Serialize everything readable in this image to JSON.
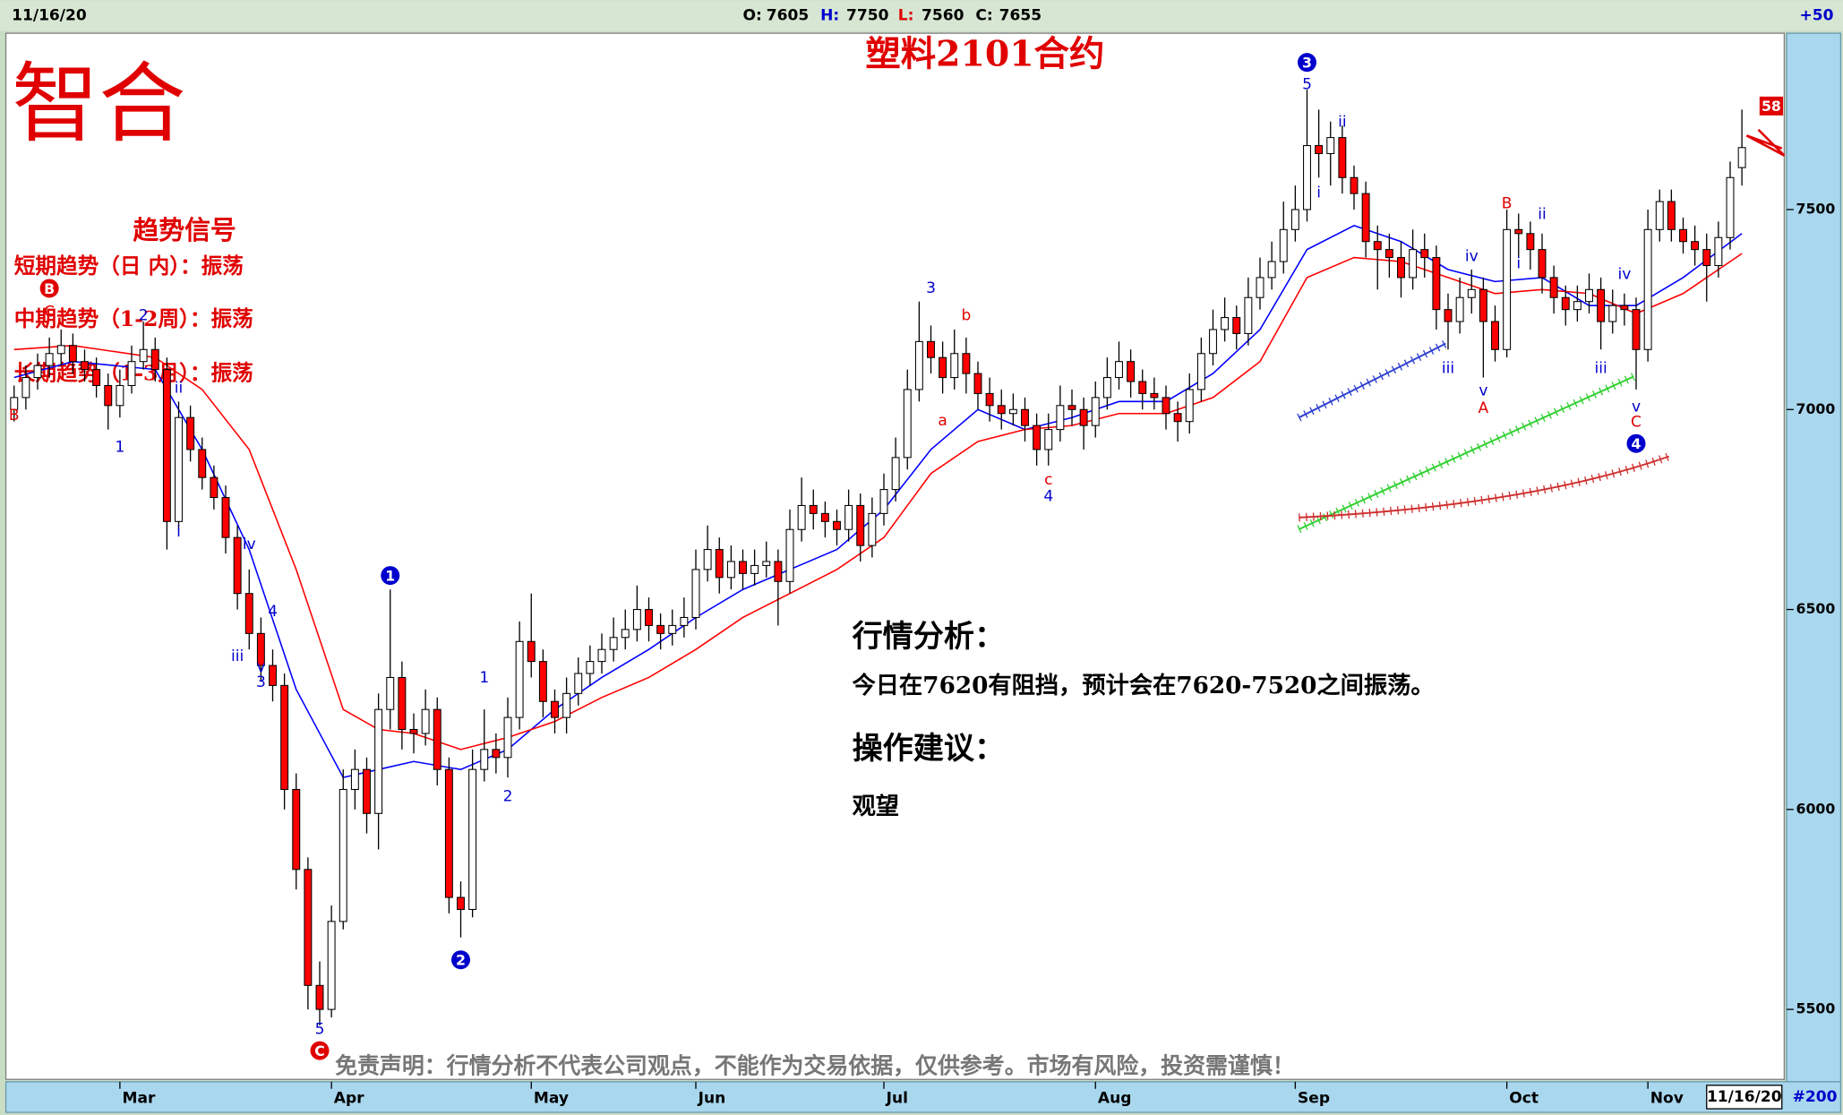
{
  "header": {
    "date": "11/16/20",
    "open": {
      "label": "O:",
      "value": 7605
    },
    "high": {
      "label": "H:",
      "value": 7750
    },
    "low": {
      "label": "L:",
      "value": 7560
    },
    "close": {
      "label": "C:",
      "value": 7655
    },
    "change": "+50"
  },
  "logo": "智合",
  "trend_panel": {
    "title": "趋势信号",
    "rows": [
      "短期趋势（日 内）：振荡",
      "中期趋势（1-2周）：振荡",
      "长期趋势（1-3月）：振荡"
    ]
  },
  "analysis": {
    "heading": "行情分析：",
    "text": "今日在7620有阻挡，预计会在7620-7520之间振荡。",
    "advice_heading": "操作建议：",
    "advice": "观望"
  },
  "disclaimer": "免责声明：行情分析不代表公司观点，不能作为交易依据，仅供参考。市场有风险，投资需谨慎！",
  "footer": {
    "status_date": "11/16/20",
    "bar_count": "#200"
  },
  "chart_data": {
    "type": "candlestick",
    "title": "塑料2101合约",
    "ylim": [
      5325,
      7935
    ],
    "yticks": [
      5500,
      6000,
      6500,
      7000,
      7500
    ],
    "up_color": "#ffffff",
    "down_color": "#ff0000",
    "outline_color": "#000000",
    "xlabels": [
      {
        "label": "Mar",
        "index": 9
      },
      {
        "label": "Apr",
        "index": 27
      },
      {
        "label": "May",
        "index": 44
      },
      {
        "label": "Jun",
        "index": 58
      },
      {
        "label": "Jul",
        "index": 74
      },
      {
        "label": "Aug",
        "index": 92
      },
      {
        "label": "Sep",
        "index": 109
      },
      {
        "label": "Oct",
        "index": 127
      },
      {
        "label": "Nov",
        "index": 139
      }
    ],
    "candles": [
      [
        7000,
        7060,
        6970,
        7030
      ],
      [
        7030,
        7110,
        7000,
        7080
      ],
      [
        7080,
        7140,
        7050,
        7110
      ],
      [
        7110,
        7180,
        7080,
        7140
      ],
      [
        7140,
        7200,
        7110,
        7160
      ],
      [
        7160,
        7190,
        7090,
        7120
      ],
      [
        7120,
        7150,
        7070,
        7100
      ],
      [
        7100,
        7130,
        7030,
        7060
      ],
      [
        7060,
        7090,
        6950,
        7010
      ],
      [
        7010,
        7100,
        6980,
        7060
      ],
      [
        7060,
        7160,
        7040,
        7120
      ],
      [
        7120,
        7220,
        7100,
        7150
      ],
      [
        7150,
        7180,
        7070,
        7100
      ],
      [
        7100,
        7130,
        6650,
        6720
      ],
      [
        6720,
        7020,
        6700,
        6980
      ],
      [
        6980,
        7010,
        6870,
        6900
      ],
      [
        6900,
        6930,
        6800,
        6830
      ],
      [
        6830,
        6860,
        6750,
        6780
      ],
      [
        6780,
        6810,
        6640,
        6680
      ],
      [
        6680,
        6710,
        6500,
        6540
      ],
      [
        6540,
        6600,
        6400,
        6440
      ],
      [
        6440,
        6480,
        6320,
        6360
      ],
      [
        6360,
        6400,
        6270,
        6310
      ],
      [
        6310,
        6340,
        6000,
        6050
      ],
      [
        6050,
        6090,
        5800,
        5850
      ],
      [
        5850,
        5880,
        5500,
        5560
      ],
      [
        5560,
        5620,
        5460,
        5500
      ],
      [
        5500,
        5760,
        5480,
        5720
      ],
      [
        5720,
        6100,
        5700,
        6050
      ],
      [
        6050,
        6150,
        6000,
        6100
      ],
      [
        6100,
        6130,
        5940,
        5990
      ],
      [
        5990,
        6290,
        5900,
        6250
      ],
      [
        6250,
        6550,
        6200,
        6330
      ],
      [
        6330,
        6370,
        6150,
        6200
      ],
      [
        6200,
        6240,
        6140,
        6190
      ],
      [
        6190,
        6300,
        6160,
        6250
      ],
      [
        6250,
        6280,
        6060,
        6100
      ],
      [
        6100,
        6130,
        5740,
        5780
      ],
      [
        5780,
        5820,
        5680,
        5750
      ],
      [
        5750,
        6150,
        5730,
        6100
      ],
      [
        6100,
        6250,
        6070,
        6150
      ],
      [
        6150,
        6190,
        6090,
        6130
      ],
      [
        6130,
        6280,
        6080,
        6230
      ],
      [
        6230,
        6470,
        6200,
        6420
      ],
      [
        6420,
        6540,
        6330,
        6370
      ],
      [
        6370,
        6400,
        6230,
        6270
      ],
      [
        6270,
        6300,
        6190,
        6230
      ],
      [
        6230,
        6330,
        6190,
        6290
      ],
      [
        6290,
        6380,
        6260,
        6340
      ],
      [
        6340,
        6410,
        6310,
        6370
      ],
      [
        6370,
        6440,
        6340,
        6400
      ],
      [
        6400,
        6480,
        6370,
        6430
      ],
      [
        6430,
        6500,
        6400,
        6450
      ],
      [
        6450,
        6560,
        6420,
        6500
      ],
      [
        6500,
        6530,
        6420,
        6460
      ],
      [
        6460,
        6490,
        6400,
        6440
      ],
      [
        6440,
        6500,
        6410,
        6460
      ],
      [
        6460,
        6530,
        6430,
        6480
      ],
      [
        6480,
        6650,
        6450,
        6600
      ],
      [
        6600,
        6710,
        6570,
        6650
      ],
      [
        6650,
        6680,
        6540,
        6580
      ],
      [
        6580,
        6660,
        6550,
        6620
      ],
      [
        6620,
        6650,
        6550,
        6590
      ],
      [
        6590,
        6650,
        6560,
        6610
      ],
      [
        6610,
        6670,
        6580,
        6620
      ],
      [
        6620,
        6650,
        6460,
        6570
      ],
      [
        6570,
        6750,
        6540,
        6700
      ],
      [
        6700,
        6830,
        6670,
        6760
      ],
      [
        6760,
        6800,
        6700,
        6740
      ],
      [
        6740,
        6770,
        6680,
        6720
      ],
      [
        6720,
        6750,
        6660,
        6700
      ],
      [
        6700,
        6800,
        6670,
        6760
      ],
      [
        6760,
        6790,
        6620,
        6660
      ],
      [
        6660,
        6780,
        6630,
        6740
      ],
      [
        6740,
        6840,
        6710,
        6800
      ],
      [
        6800,
        6930,
        6770,
        6880
      ],
      [
        6880,
        7100,
        6850,
        7050
      ],
      [
        7050,
        7270,
        7020,
        7170
      ],
      [
        7170,
        7210,
        7090,
        7130
      ],
      [
        7130,
        7170,
        7040,
        7080
      ],
      [
        7080,
        7200,
        7050,
        7140
      ],
      [
        7140,
        7180,
        7040,
        7090
      ],
      [
        7090,
        7120,
        7000,
        7040
      ],
      [
        7040,
        7080,
        6970,
        7010
      ],
      [
        7010,
        7050,
        6950,
        6990
      ],
      [
        6990,
        7040,
        6960,
        7000
      ],
      [
        7000,
        7030,
        6920,
        6960
      ],
      [
        6960,
        6990,
        6860,
        6900
      ],
      [
        6900,
        6990,
        6860,
        6950
      ],
      [
        6950,
        7060,
        6920,
        7010
      ],
      [
        7010,
        7050,
        6960,
        7000
      ],
      [
        7000,
        7030,
        6900,
        6960
      ],
      [
        6960,
        7070,
        6930,
        7030
      ],
      [
        7030,
        7130,
        7000,
        7080
      ],
      [
        7080,
        7170,
        7050,
        7120
      ],
      [
        7120,
        7150,
        7030,
        7070
      ],
      [
        7070,
        7100,
        7000,
        7040
      ],
      [
        7040,
        7080,
        7000,
        7030
      ],
      [
        7030,
        7060,
        6950,
        6990
      ],
      [
        6990,
        7020,
        6920,
        6970
      ],
      [
        6970,
        7090,
        6940,
        7050
      ],
      [
        7050,
        7180,
        7020,
        7140
      ],
      [
        7140,
        7250,
        7110,
        7200
      ],
      [
        7200,
        7280,
        7170,
        7230
      ],
      [
        7230,
        7260,
        7150,
        7190
      ],
      [
        7190,
        7330,
        7160,
        7280
      ],
      [
        7280,
        7380,
        7250,
        7330
      ],
      [
        7330,
        7420,
        7300,
        7370
      ],
      [
        7370,
        7520,
        7340,
        7450
      ],
      [
        7450,
        7560,
        7420,
        7500
      ],
      [
        7500,
        7800,
        7470,
        7660
      ],
      [
        7660,
        7750,
        7580,
        7640
      ],
      [
        7640,
        7720,
        7560,
        7680
      ],
      [
        7680,
        7710,
        7540,
        7580
      ],
      [
        7580,
        7610,
        7500,
        7540
      ],
      [
        7540,
        7570,
        7380,
        7420
      ],
      [
        7420,
        7460,
        7300,
        7400
      ],
      [
        7400,
        7440,
        7330,
        7380
      ],
      [
        7380,
        7420,
        7280,
        7330
      ],
      [
        7330,
        7450,
        7300,
        7400
      ],
      [
        7400,
        7440,
        7330,
        7380
      ],
      [
        7380,
        7410,
        7200,
        7250
      ],
      [
        7250,
        7290,
        7150,
        7220
      ],
      [
        7220,
        7330,
        7190,
        7280
      ],
      [
        7280,
        7350,
        7240,
        7300
      ],
      [
        7300,
        7330,
        7080,
        7220
      ],
      [
        7220,
        7260,
        7120,
        7150
      ],
      [
        7150,
        7500,
        7130,
        7450
      ],
      [
        7450,
        7490,
        7380,
        7440
      ],
      [
        7440,
        7470,
        7350,
        7400
      ],
      [
        7400,
        7440,
        7290,
        7330
      ],
      [
        7330,
        7360,
        7240,
        7280
      ],
      [
        7280,
        7310,
        7210,
        7250
      ],
      [
        7250,
        7310,
        7220,
        7270
      ],
      [
        7270,
        7340,
        7240,
        7300
      ],
      [
        7300,
        7330,
        7150,
        7220
      ],
      [
        7220,
        7300,
        7190,
        7260
      ],
      [
        7260,
        7290,
        7210,
        7250
      ],
      [
        7250,
        7280,
        7050,
        7150
      ],
      [
        7150,
        7500,
        7120,
        7450
      ],
      [
        7450,
        7550,
        7420,
        7520
      ],
      [
        7520,
        7550,
        7420,
        7450
      ],
      [
        7450,
        7480,
        7390,
        7420
      ],
      [
        7420,
        7460,
        7360,
        7400
      ],
      [
        7400,
        7440,
        7270,
        7360
      ],
      [
        7360,
        7470,
        7330,
        7430
      ],
      [
        7430,
        7620,
        7400,
        7580
      ],
      [
        7605,
        7750,
        7560,
        7655
      ]
    ],
    "lines": [
      {
        "color": "#0000ff",
        "x": [
          0,
          5,
          12,
          16,
          20,
          24,
          28,
          31,
          34,
          38,
          42,
          46,
          50,
          54,
          58,
          62,
          66,
          70,
          74,
          78,
          82,
          86,
          90,
          94,
          98,
          102,
          106,
          110,
          114,
          118,
          122,
          126,
          130,
          134,
          138,
          142,
          147
        ],
        "values": [
          7080,
          7120,
          7100,
          6900,
          6650,
          6300,
          6080,
          6100,
          6120,
          6100,
          6150,
          6250,
          6330,
          6400,
          6480,
          6550,
          6600,
          6650,
          6750,
          6900,
          7000,
          6950,
          6980,
          7020,
          7020,
          7090,
          7200,
          7400,
          7460,
          7420,
          7350,
          7320,
          7330,
          7260,
          7260,
          7330,
          7440
        ]
      },
      {
        "color": "#ff0000",
        "x": [
          0,
          5,
          12,
          16,
          20,
          24,
          28,
          31,
          34,
          38,
          42,
          46,
          50,
          54,
          58,
          62,
          66,
          70,
          74,
          78,
          82,
          86,
          90,
          94,
          98,
          102,
          106,
          110,
          114,
          118,
          122,
          126,
          130,
          134,
          138,
          142,
          147
        ],
        "values": [
          7150,
          7160,
          7130,
          7050,
          6900,
          6600,
          6250,
          6200,
          6190,
          6150,
          6180,
          6220,
          6280,
          6330,
          6400,
          6480,
          6540,
          6600,
          6680,
          6840,
          6920,
          6950,
          6960,
          6990,
          6990,
          7030,
          7120,
          7330,
          7380,
          7370,
          7330,
          7290,
          7300,
          7290,
          7240,
          7290,
          7390
        ]
      }
    ],
    "annotations": [
      {
        "text": "B",
        "index": 0,
        "y": 6985,
        "color": "#e00000"
      },
      {
        "text": "B",
        "index": 3,
        "y": 7303,
        "color": "#e00000",
        "circle": true
      },
      {
        "text": "C",
        "index": 3,
        "y": 7244,
        "color": "#e00000"
      },
      {
        "text": "1",
        "index": 9,
        "y": 6906,
        "color": "#0000cc"
      },
      {
        "text": "2",
        "index": 11,
        "y": 7235,
        "color": "#0000cc"
      },
      {
        "text": "ii",
        "index": 14,
        "y": 7053,
        "color": "#0000cc"
      },
      {
        "text": "i",
        "index": 14,
        "y": 6694,
        "color": "#0000cc"
      },
      {
        "text": "iv",
        "index": 20,
        "y": 6662,
        "color": "#0000cc"
      },
      {
        "text": "4",
        "index": 22,
        "y": 6494,
        "color": "#0000cc"
      },
      {
        "text": "iii",
        "index": 19,
        "y": 6382,
        "color": "#0000cc"
      },
      {
        "text": "v",
        "index": 21,
        "y": 6356,
        "color": "#0000cc"
      },
      {
        "text": "3",
        "index": 21,
        "y": 6318,
        "color": "#0000cc"
      },
      {
        "text": "5",
        "index": 26,
        "y": 5450,
        "color": "#0000cc"
      },
      {
        "text": "C",
        "index": 26,
        "y": 5397,
        "color": "#e00000",
        "circle": true
      },
      {
        "text": "1",
        "index": 32,
        "y": 6585,
        "color": "#0000cc",
        "circle": true
      },
      {
        "text": "2",
        "index": 38,
        "y": 5624,
        "color": "#0000cc",
        "circle": true
      },
      {
        "text": "1",
        "index": 40,
        "y": 6329,
        "color": "#0000cc"
      },
      {
        "text": "2",
        "index": 42,
        "y": 6032,
        "color": "#0000cc"
      },
      {
        "text": "3",
        "index": 78,
        "y": 7303,
        "color": "#0000cc"
      },
      {
        "text": "b",
        "index": 81,
        "y": 7235,
        "color": "#e00000"
      },
      {
        "text": "a",
        "index": 79,
        "y": 6971,
        "color": "#e00000"
      },
      {
        "text": "c",
        "index": 88,
        "y": 6824,
        "color": "#e00000"
      },
      {
        "text": "4",
        "index": 88,
        "y": 6782,
        "color": "#0000cc"
      },
      {
        "text": "3",
        "index": 110,
        "y": 7868,
        "color": "#0000cc",
        "circle": true
      },
      {
        "text": "5",
        "index": 110,
        "y": 7812,
        "color": "#0000cc"
      },
      {
        "text": "ii",
        "index": 113,
        "y": 7718,
        "color": "#0000cc"
      },
      {
        "text": "i",
        "index": 111,
        "y": 7541,
        "color": "#0000cc"
      },
      {
        "text": "iv",
        "index": 124,
        "y": 7382,
        "color": "#0000cc"
      },
      {
        "text": "iii",
        "index": 122,
        "y": 7103,
        "color": "#0000cc"
      },
      {
        "text": "v",
        "index": 125,
        "y": 7047,
        "color": "#0000cc"
      },
      {
        "text": "A",
        "index": 125,
        "y": 7003,
        "color": "#e00000"
      },
      {
        "text": "B",
        "index": 127,
        "y": 7515,
        "color": "#e00000"
      },
      {
        "text": "ii",
        "index": 130,
        "y": 7488,
        "color": "#0000cc"
      },
      {
        "text": "i",
        "index": 128,
        "y": 7365,
        "color": "#0000cc"
      },
      {
        "text": "iv",
        "index": 137,
        "y": 7338,
        "color": "#0000cc"
      },
      {
        "text": "iii",
        "index": 135,
        "y": 7103,
        "color": "#0000cc"
      },
      {
        "text": "v",
        "index": 138,
        "y": 7006,
        "color": "#0000cc"
      },
      {
        "text": "C",
        "index": 138,
        "y": 6968,
        "color": "#e00000"
      },
      {
        "text": "4",
        "index": 138,
        "y": 6915,
        "color": "#0000cc",
        "circle": true
      },
      {
        "text": "58",
        "index": 149.5,
        "y": 7759,
        "color": "#e00000",
        "box": true
      }
    ]
  }
}
